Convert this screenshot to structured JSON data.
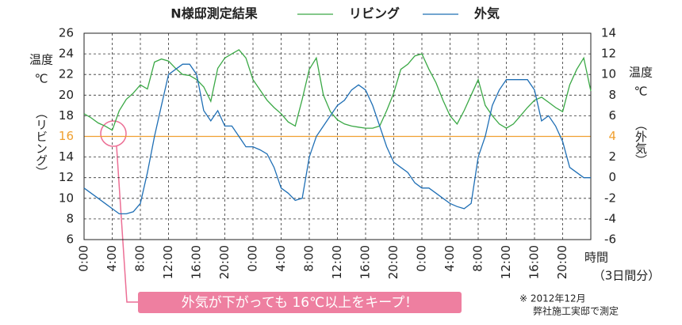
{
  "chart_data": {
    "type": "line",
    "title": "N様邸測定結果",
    "ylabel": "温度",
    "ylabel_unit": "℃",
    "ylabel_series": "（リビング）",
    "y2label": "温度",
    "y2label_unit": "℃",
    "y2label_series": "（外気）",
    "xlabel": "時間",
    "xlabel_note": "（3日間分）",
    "annotation": "外気が下がっても 16℃以上をキープ！",
    "note": [
      "※ 2012年12月",
      "弊社施工実邸で測定"
    ],
    "x": [
      0,
      1,
      2,
      3,
      4,
      5,
      6,
      7,
      8,
      9,
      10,
      11,
      12,
      13,
      14,
      15,
      16,
      17,
      18,
      19,
      20,
      21,
      22,
      23,
      24,
      25,
      26,
      27,
      28,
      29,
      30,
      31,
      32,
      33,
      34,
      35,
      36,
      37,
      38,
      39,
      40,
      41,
      42,
      43,
      44,
      45,
      46,
      47,
      48,
      49,
      50,
      51,
      52,
      53,
      54,
      55,
      56,
      57,
      58,
      59,
      60,
      61,
      62,
      63,
      64,
      65,
      66,
      67,
      68,
      69,
      70,
      71,
      72
    ],
    "xlim": [
      0,
      72
    ],
    "xticks": [
      {
        "value": 0,
        "label": "0:00"
      },
      {
        "value": 4,
        "label": "4:00"
      },
      {
        "value": 8,
        "label": "8:00"
      },
      {
        "value": 12,
        "label": "12:00"
      },
      {
        "value": 16,
        "label": "16:00"
      },
      {
        "value": 20,
        "label": "20:00"
      },
      {
        "value": 24,
        "label": "0:00"
      },
      {
        "value": 28,
        "label": "4:00"
      },
      {
        "value": 32,
        "label": "8:00"
      },
      {
        "value": 36,
        "label": "12:00"
      },
      {
        "value": 40,
        "label": "16:00"
      },
      {
        "value": 44,
        "label": "20:00"
      },
      {
        "value": 48,
        "label": "0:00"
      },
      {
        "value": 52,
        "label": "4:00"
      },
      {
        "value": 56,
        "label": "8:00"
      },
      {
        "value": 60,
        "label": "12:00"
      },
      {
        "value": 64,
        "label": "16:00"
      },
      {
        "value": 68,
        "label": "20:00"
      }
    ],
    "ylim": [
      6,
      26
    ],
    "yticks": [
      6,
      8,
      10,
      12,
      14,
      16,
      18,
      20,
      22,
      24,
      26
    ],
    "y2lim": [
      -6,
      14
    ],
    "y2ticks": [
      -6,
      -4,
      -2,
      0,
      2,
      4,
      6,
      8,
      10,
      12,
      14
    ],
    "reference": {
      "y": 16,
      "y2": 4,
      "color": "#f0a030"
    },
    "grid": true,
    "series": [
      {
        "name": "リビング",
        "color": "#3aa845",
        "values": [
          18.2,
          17.8,
          17.3,
          17.0,
          16.6,
          18.5,
          19.6,
          20.2,
          21.0,
          20.6,
          23.2,
          23.5,
          23.3,
          22.6,
          22.0,
          21.9,
          21.5,
          20.8,
          19.4,
          22.6,
          23.6,
          24.0,
          24.4,
          23.6,
          21.5,
          20.5,
          19.5,
          18.8,
          18.2,
          17.4,
          17.0,
          19.6,
          22.5,
          23.6,
          20.0,
          18.4,
          17.6,
          17.2,
          17.0,
          16.9,
          16.8,
          16.8,
          17.0,
          18.5,
          20.2,
          22.5,
          23.0,
          23.8,
          24.0,
          22.5,
          21.2,
          19.5,
          18.0,
          17.2,
          18.5,
          20.0,
          21.5,
          19.0,
          18.0,
          17.2,
          16.8,
          17.2,
          18.0,
          18.8,
          19.5,
          19.8,
          19.3,
          18.8,
          18.4,
          21.0,
          22.5,
          23.6,
          20.4
        ]
      },
      {
        "name": "外気",
        "color": "#1f6fb5",
        "axis": "y2",
        "values": [
          -1,
          -1.5,
          -2,
          -2.5,
          -3,
          -3.5,
          -3.5,
          -3.3,
          -2.5,
          0.5,
          4,
          7,
          10,
          10.5,
          11,
          11,
          10,
          6.5,
          5.5,
          6.5,
          5,
          5,
          4,
          3,
          3,
          2.7,
          2.3,
          1,
          -1,
          -1.5,
          -2.2,
          -2,
          2,
          4,
          5,
          6,
          7,
          7.5,
          8.5,
          9,
          8.5,
          7,
          5,
          3,
          1.5,
          1,
          0.5,
          -0.5,
          -1,
          -1,
          -1.5,
          -2,
          -2.5,
          -2.8,
          -3,
          -2.5,
          2,
          4,
          7,
          8.5,
          9.5,
          9.5,
          9.5,
          9.5,
          8.5,
          5.5,
          6,
          5,
          3.5,
          1,
          0.5,
          0,
          0
        ]
      }
    ]
  }
}
